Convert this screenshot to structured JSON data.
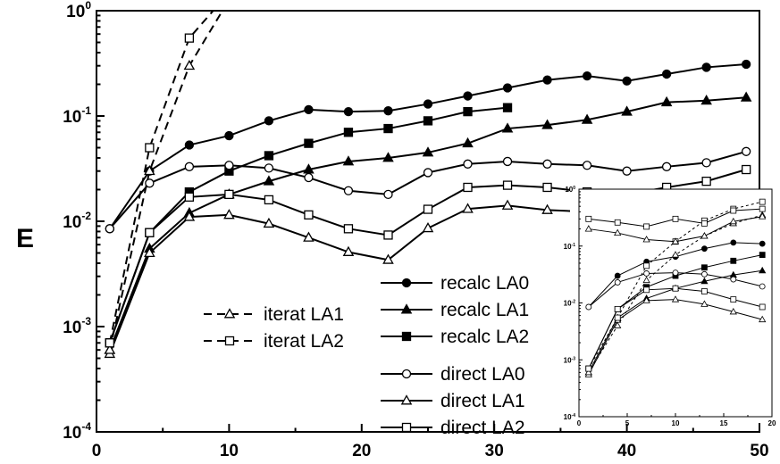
{
  "chart_data": [
    {
      "type": "line",
      "title": "",
      "xlabel": "",
      "ylabel": "E",
      "x_scale": "linear",
      "y_scale": "log",
      "xlim": [
        0,
        50
      ],
      "ylim": [
        0.0001,
        1
      ],
      "x_ticks": [
        0,
        10,
        20,
        30,
        40,
        50
      ],
      "x_tick_labels": [
        "0",
        "10",
        "20",
        "30",
        "40",
        "50"
      ],
      "y_ticks": [
        0.0001,
        0.001,
        0.01,
        0.1,
        1
      ],
      "y_tick_labels": [
        {
          "base": "10",
          "exp": "-4"
        },
        {
          "base": "10",
          "exp": "-3"
        },
        {
          "base": "10",
          "exp": "-2"
        },
        {
          "base": "10",
          "exp": "-1"
        },
        {
          "base": "10",
          "exp": "0"
        }
      ],
      "grid": false,
      "legend_position": "bottom-center",
      "series": [
        {
          "name": "recalc LA0",
          "line": "solid",
          "marker": "circle",
          "fill": "black",
          "x": [
            1,
            4,
            7,
            10,
            13,
            16,
            19,
            22,
            25,
            28,
            31,
            34,
            37,
            40,
            43,
            46,
            49
          ],
          "y": [
            0.0085,
            0.03,
            0.053,
            0.065,
            0.09,
            0.115,
            0.11,
            0.112,
            0.13,
            0.155,
            0.185,
            0.22,
            0.24,
            0.215,
            0.25,
            0.29,
            0.31
          ]
        },
        {
          "name": "recalc LA1",
          "line": "solid",
          "marker": "triangle",
          "fill": "black",
          "x": [
            1,
            4,
            7,
            10,
            13,
            16,
            19,
            22,
            25,
            28,
            31,
            34,
            37,
            40,
            43,
            46,
            49
          ],
          "y": [
            0.0006,
            0.0055,
            0.012,
            0.018,
            0.024,
            0.031,
            0.037,
            0.04,
            0.045,
            0.055,
            0.076,
            0.082,
            0.092,
            0.11,
            0.135,
            0.14,
            0.15
          ]
        },
        {
          "name": "recalc LA2",
          "line": "solid",
          "marker": "square",
          "fill": "black",
          "x": [
            1,
            4,
            7,
            10,
            13,
            16,
            19,
            22,
            25,
            28,
            31
          ],
          "y": [
            0.0007,
            0.0078,
            0.019,
            0.03,
            0.042,
            0.055,
            0.07,
            0.076,
            0.09,
            0.11,
            0.12
          ]
        },
        {
          "name": "direct LA0",
          "line": "solid",
          "marker": "circle",
          "fill": "white",
          "x": [
            1,
            4,
            7,
            10,
            13,
            16,
            19,
            22,
            25,
            28,
            31,
            34,
            37,
            40,
            43,
            46,
            49
          ],
          "y": [
            0.0085,
            0.023,
            0.033,
            0.034,
            0.032,
            0.026,
            0.0195,
            0.018,
            0.029,
            0.035,
            0.037,
            0.035,
            0.034,
            0.03,
            0.033,
            0.036,
            0.046
          ]
        },
        {
          "name": "direct LA1",
          "line": "solid",
          "marker": "triangle",
          "fill": "white",
          "x": [
            1,
            4,
            7,
            10,
            13,
            16,
            19,
            22,
            25,
            28,
            31,
            34,
            37,
            40,
            43,
            46,
            49
          ],
          "y": [
            0.00055,
            0.005,
            0.011,
            0.0115,
            0.0095,
            0.007,
            0.0051,
            0.0043,
            0.0086,
            0.0131,
            0.0141,
            0.0128,
            0.0123,
            0.0115,
            0.0131,
            0.0125,
            0.0128
          ]
        },
        {
          "name": "direct LA2",
          "line": "solid",
          "marker": "square",
          "fill": "white",
          "x": [
            1,
            4,
            7,
            10,
            13,
            16,
            19,
            22,
            25,
            28,
            31,
            34,
            37,
            40,
            43,
            46,
            49
          ],
          "y": [
            0.0007,
            0.0078,
            0.017,
            0.018,
            0.016,
            0.0115,
            0.0085,
            0.0074,
            0.013,
            0.021,
            0.022,
            0.021,
            0.019,
            0.018,
            0.021,
            0.024,
            0.031
          ]
        },
        {
          "name": "iterat LA1",
          "line": "dashed",
          "marker": "triangle",
          "fill": "white",
          "x": [
            1,
            4,
            7,
            9.5
          ],
          "y": [
            0.0006,
            0.03,
            0.3,
            1.0
          ]
        },
        {
          "name": "iterat LA2",
          "line": "dashed",
          "marker": "square",
          "fill": "white",
          "x": [
            1,
            4,
            7,
            8.8
          ],
          "y": [
            0.0007,
            0.05,
            0.55,
            1.0
          ]
        }
      ],
      "legend": {
        "left": [
          "iterat LA1",
          "iterat LA2"
        ],
        "right": [
          "recalc LA0",
          "recalc LA1",
          "recalc LA2",
          "direct LA0",
          "direct LA1",
          "direct LA2"
        ]
      }
    },
    {
      "type": "line",
      "title": "",
      "xlabel": "",
      "ylabel": "",
      "x_scale": "linear",
      "y_scale": "log",
      "xlim": [
        0,
        20
      ],
      "ylim": [
        0.0001,
        1
      ],
      "x_ticks": [
        0,
        5,
        10,
        15,
        20
      ],
      "x_tick_labels": [
        "0",
        "5",
        "10",
        "15",
        "20"
      ],
      "y_ticks": [
        0.0001,
        0.001,
        0.01,
        0.1,
        1
      ],
      "y_tick_labels": [
        {
          "base": "10",
          "exp": "-4"
        },
        {
          "base": "10",
          "exp": "-3"
        },
        {
          "base": "10",
          "exp": "-2"
        },
        {
          "base": "10",
          "exp": "-1"
        },
        {
          "base": "10",
          "exp": "0"
        }
      ],
      "grid": false,
      "series": [
        {
          "name": "recalc LA0",
          "line": "solid",
          "marker": "circle",
          "fill": "black",
          "x": [
            1,
            4,
            7,
            10,
            13,
            16,
            19
          ],
          "y": [
            0.0085,
            0.03,
            0.053,
            0.065,
            0.09,
            0.115,
            0.11
          ]
        },
        {
          "name": "recalc LA1",
          "line": "solid",
          "marker": "triangle",
          "fill": "black",
          "x": [
            1,
            4,
            7,
            10,
            13,
            16,
            19
          ],
          "y": [
            0.0006,
            0.0055,
            0.012,
            0.018,
            0.024,
            0.031,
            0.037
          ]
        },
        {
          "name": "recalc LA2",
          "line": "solid",
          "marker": "square",
          "fill": "black",
          "x": [
            1,
            4,
            7,
            10,
            13,
            16,
            19
          ],
          "y": [
            0.0007,
            0.0078,
            0.019,
            0.03,
            0.042,
            0.055,
            0.07
          ]
        },
        {
          "name": "direct LA0",
          "line": "solid",
          "marker": "circle",
          "fill": "white",
          "x": [
            1,
            4,
            7,
            10,
            13,
            16,
            19
          ],
          "y": [
            0.0085,
            0.023,
            0.033,
            0.034,
            0.032,
            0.026,
            0.0195
          ]
        },
        {
          "name": "direct LA1",
          "line": "solid",
          "marker": "triangle",
          "fill": "white",
          "x": [
            1,
            4,
            7,
            10,
            13,
            16,
            19
          ],
          "y": [
            0.00055,
            0.005,
            0.011,
            0.0115,
            0.0095,
            0.007,
            0.0051
          ]
        },
        {
          "name": "direct LA2",
          "line": "solid",
          "marker": "square",
          "fill": "white",
          "x": [
            1,
            4,
            7,
            10,
            13,
            16,
            19
          ],
          "y": [
            0.0007,
            0.0078,
            0.017,
            0.018,
            0.016,
            0.0115,
            0.0085
          ]
        },
        {
          "name": "iterat LA1",
          "line": "dashed",
          "marker": "triangle",
          "fill": "white",
          "x": [
            1,
            4,
            7,
            10,
            13,
            16,
            19
          ],
          "y": [
            0.0006,
            0.004,
            0.025,
            0.07,
            0.15,
            0.25,
            0.35
          ]
        },
        {
          "name": "iterat LA2",
          "line": "dashed",
          "marker": "square",
          "fill": "white",
          "x": [
            1,
            4,
            7,
            10,
            13,
            16,
            19
          ],
          "y": [
            0.0007,
            0.0055,
            0.045,
            0.12,
            0.28,
            0.45,
            0.6
          ]
        },
        {
          "name": "direct LA2 (top)",
          "line": "solid",
          "marker": "square",
          "fill": "white",
          "x": [
            1,
            4,
            7,
            10,
            13,
            16,
            19
          ],
          "y": [
            0.3,
            0.26,
            0.22,
            0.3,
            0.25,
            0.42,
            0.45
          ]
        },
        {
          "name": "direct LA1 (top)",
          "line": "solid",
          "marker": "triangle",
          "fill": "white",
          "x": [
            1,
            4,
            7,
            10,
            13,
            16,
            19
          ],
          "y": [
            0.2,
            0.17,
            0.13,
            0.12,
            0.15,
            0.27,
            0.33
          ]
        }
      ]
    }
  ]
}
